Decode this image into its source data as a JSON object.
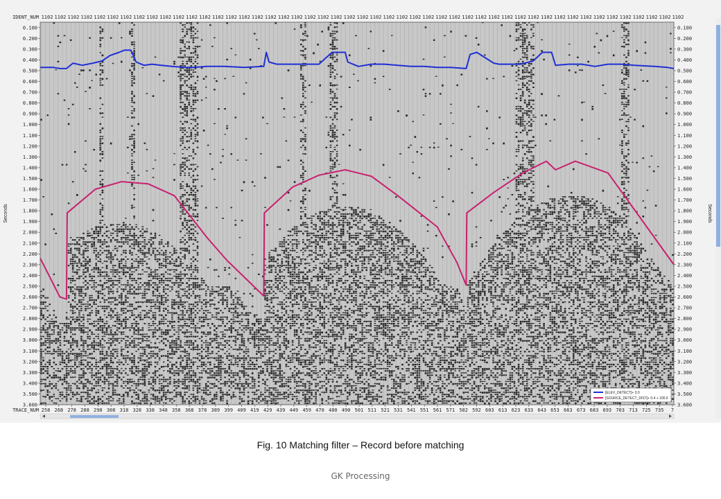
{
  "headers": {
    "top_row_label": "IDENT_NUM",
    "top_row_value": "1102",
    "bottom_row_label": "TRACE_NUM",
    "y_axis_label": "Seconds"
  },
  "caption": "Fig. 10 Matching filter – Record before matching",
  "footer": "GK Processing",
  "legend": {
    "items": [
      {
        "label": "[ELEV_DETECT]+ 3.0",
        "color": "#1f2ed6"
      },
      {
        "label": "[SOURCE_DETECT_DIST]+ 0.4 + 100.0",
        "color": "#c8206e"
      }
    ]
  },
  "colors": {
    "elevation_curve": "#1f2ed6",
    "offset_curve": "#c8206e",
    "background": "#c8c8c8",
    "wiggle": "#000000",
    "scroll_thumb": "#8fb0e0"
  },
  "chart_data": {
    "type": "line",
    "title": "",
    "xlabel": "TRACE_NUM",
    "ylabel": "Seconds",
    "ylim": [
      0.05,
      3.6
    ],
    "y_inverted": true,
    "x_ticks": [
      "258",
      "268",
      "278",
      "288",
      "298",
      "308",
      "318",
      "328",
      "338",
      "348",
      "358",
      "368",
      "378",
      "389",
      "399",
      "409",
      "419",
      "429",
      "439",
      "449",
      "459",
      "470",
      "480",
      "490",
      "501",
      "511",
      "521",
      "531",
      "541",
      "551",
      "561",
      "571",
      "582",
      "592",
      "603",
      "613",
      "623",
      "633",
      "643",
      "653",
      "663",
      "673",
      "683",
      "693",
      "703",
      "713",
      "725",
      "735",
      "7"
    ],
    "y_ticks": [
      "0.100",
      "0.200",
      "0.300",
      "0.400",
      "0.500",
      "0.600",
      "0.700",
      "0.800",
      "0.900",
      "1.000",
      "1.100",
      "1.200",
      "1.300",
      "1.400",
      "1.500",
      "1.600",
      "1.700",
      "1.800",
      "1.900",
      "2.000",
      "2.100",
      "2.200",
      "2.300",
      "2.400",
      "2.500",
      "2.600",
      "2.700",
      "2.800",
      "2.900",
      "3.000",
      "3.100",
      "3.200",
      "3.300",
      "3.400",
      "3.500",
      "3.600"
    ],
    "series": [
      {
        "name": "[ELEV_DETECT]+ 3.0",
        "color": "#1f2ed6",
        "x": [
          258,
          268,
          273,
          278,
          283,
          290,
          298,
          305,
          311,
          318,
          322,
          327,
          331,
          337,
          343,
          350,
          358,
          368,
          375,
          385,
          398,
          413,
          428,
          430,
          432,
          438,
          448,
          458,
          470,
          480,
          490,
          492,
          500,
          510,
          520,
          530,
          540,
          550,
          560,
          570,
          582,
          585,
          590,
          603,
          607,
          613,
          623,
          633,
          640,
          647,
          650,
          660,
          670,
          680,
          690,
          700,
          710,
          725,
          735,
          740
        ],
        "y": [
          0.47,
          0.47,
          0.48,
          0.48,
          0.43,
          0.45,
          0.43,
          0.41,
          0.36,
          0.33,
          0.31,
          0.31,
          0.42,
          0.45,
          0.44,
          0.45,
          0.46,
          0.47,
          0.47,
          0.46,
          0.46,
          0.47,
          0.46,
          0.33,
          0.42,
          0.44,
          0.44,
          0.44,
          0.44,
          0.33,
          0.33,
          0.42,
          0.46,
          0.44,
          0.44,
          0.45,
          0.46,
          0.46,
          0.47,
          0.47,
          0.48,
          0.35,
          0.33,
          0.43,
          0.44,
          0.44,
          0.44,
          0.41,
          0.33,
          0.33,
          0.45,
          0.44,
          0.44,
          0.46,
          0.44,
          0.44,
          0.45,
          0.46,
          0.47,
          0.48
        ]
      },
      {
        "name": "[SOURCE_DETECT_DIST]+ 0.4 + 100.0",
        "color": "#c8206e",
        "x": [
          258,
          273,
          278,
          278.5,
          300,
          320,
          340,
          360,
          385,
          400,
          428,
          428.5,
          450,
          470,
          490,
          510,
          530,
          560,
          575,
          582,
          582.5,
          603,
          625,
          643,
          650,
          665,
          690,
          720,
          740
        ],
        "y": [
          2.24,
          2.6,
          2.62,
          1.82,
          1.6,
          1.53,
          1.55,
          1.66,
          2.05,
          2.26,
          2.59,
          1.82,
          1.58,
          1.47,
          1.42,
          1.48,
          1.66,
          1.95,
          2.28,
          2.49,
          1.82,
          1.63,
          1.45,
          1.34,
          1.42,
          1.34,
          1.45,
          1.96,
          2.3
        ]
      }
    ]
  }
}
